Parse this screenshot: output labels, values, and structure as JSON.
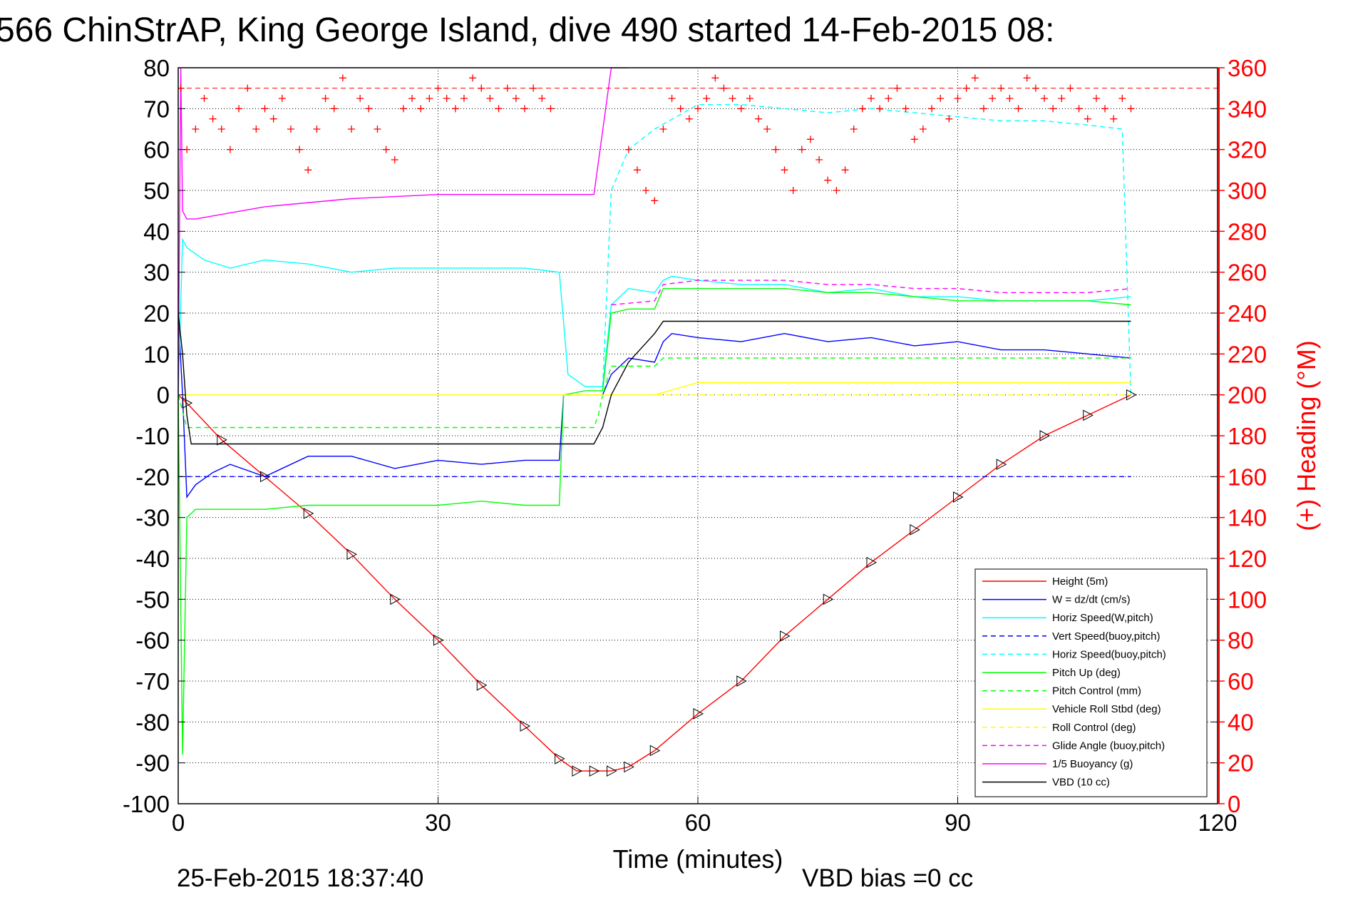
{
  "chart_data": {
    "type": "line",
    "title": "566 ChinStrAP, King George Island, dive 490 started 14-Feb-2015 08:",
    "xlabel": "Time (minutes)",
    "ylabel_right": "(+) Heading (°M)",
    "xlim": [
      0,
      120
    ],
    "ylim_left": [
      -100,
      80
    ],
    "ylim_right": [
      0,
      360
    ],
    "x_ticks": [
      "0",
      "30",
      "60",
      "90",
      "120"
    ],
    "y_ticks_left": [
      "80",
      "70",
      "60",
      "50",
      "40",
      "30",
      "20",
      "10",
      "0",
      "-10",
      "-20",
      "-30",
      "-40",
      "-50",
      "-60",
      "-70",
      "-80",
      "-90",
      "-100"
    ],
    "y_ticks_right": [
      "360",
      "340",
      "320",
      "300",
      "280",
      "260",
      "240",
      "220",
      "200",
      "180",
      "160",
      "140",
      "120",
      "100",
      "80",
      "60",
      "40",
      "20",
      "0"
    ],
    "grid": true,
    "legend_position": "bottom-right",
    "footer_date": "25-Feb-2015 18:37:40",
    "footer_bias": "VBD bias =0 cc",
    "series": [
      {
        "name": "Height (5m)",
        "color": "#ff0000",
        "style": "solid",
        "x": [
          0,
          1,
          5,
          10,
          15,
          20,
          25,
          30,
          35,
          40,
          44,
          46,
          48,
          50,
          52,
          55,
          60,
          65,
          70,
          75,
          80,
          85,
          90,
          95,
          100,
          105,
          110
        ],
        "y": [
          0,
          -2,
          -11,
          -20,
          -29,
          -39,
          -50,
          -60,
          -71,
          -81,
          -89,
          -92,
          -92,
          -92,
          -91,
          -87,
          -78,
          -70,
          -59,
          -50,
          -41,
          -33,
          -25,
          -17,
          -10,
          -5,
          0
        ]
      },
      {
        "name": "W = dz/dt (cm/s)",
        "color": "#0000ff",
        "style": "solid",
        "x": [
          0,
          0.5,
          1,
          2,
          4,
          6,
          10,
          15,
          20,
          25,
          30,
          35,
          40,
          44,
          44.5,
          46,
          48,
          49,
          50,
          52,
          55,
          56,
          57,
          60,
          65,
          70,
          75,
          80,
          85,
          90,
          95,
          100,
          105,
          110
        ],
        "y": [
          20,
          0,
          -25,
          -22,
          -19,
          -17,
          -20,
          -15,
          -15,
          -18,
          -16,
          -17,
          -16,
          -16,
          0,
          0,
          0,
          0,
          5,
          9,
          8,
          13,
          15,
          14,
          13,
          15,
          13,
          14,
          12,
          13,
          11,
          11,
          10,
          9
        ]
      },
      {
        "name": "Horiz Speed(W,pitch)",
        "color": "#00ffff",
        "style": "solid",
        "x": [
          0,
          0.5,
          1,
          3,
          6,
          10,
          15,
          20,
          25,
          30,
          35,
          40,
          44,
          45,
          47,
          49,
          50,
          52,
          55,
          56,
          57,
          60,
          65,
          70,
          75,
          80,
          85,
          90,
          95,
          100,
          105,
          110
        ],
        "y": [
          0,
          38,
          36,
          33,
          31,
          33,
          32,
          30,
          31,
          31,
          31,
          31,
          30,
          5,
          2,
          2,
          22,
          26,
          25,
          28,
          29,
          28,
          27,
          27,
          25,
          26,
          24,
          24,
          23,
          23,
          23,
          24
        ]
      },
      {
        "name": "Vert Speed(buoy,pitch)",
        "color": "#0000ff",
        "style": "dashed",
        "x": [
          0,
          110
        ],
        "y": [
          -20,
          -20
        ]
      },
      {
        "name": "Horiz Speed(buoy,pitch)",
        "color": "#00ffff",
        "style": "dashed",
        "x": [
          49,
          50,
          52,
          55,
          60,
          65,
          70,
          75,
          80,
          85,
          90,
          95,
          100,
          105,
          109,
          110
        ],
        "y": [
          2,
          50,
          60,
          65,
          71,
          71,
          70,
          69,
          70,
          69,
          68,
          67,
          67,
          66,
          65,
          0
        ]
      },
      {
        "name": "Pitch Up (deg)",
        "color": "#00ff00",
        "style": "solid",
        "x": [
          0,
          0.5,
          1,
          2,
          5,
          10,
          15,
          20,
          25,
          30,
          35,
          40,
          44,
          44.5,
          47,
          49,
          50,
          52,
          55,
          56,
          60,
          65,
          70,
          75,
          80,
          85,
          90,
          95,
          100,
          105,
          110
        ],
        "y": [
          0,
          -88,
          -30,
          -28,
          -28,
          -28,
          -27,
          -27,
          -27,
          -27,
          -26,
          -27,
          -27,
          0,
          1,
          1,
          20,
          21,
          21,
          26,
          26,
          26,
          26,
          25,
          25,
          24,
          23,
          23,
          23,
          23,
          22
        ]
      },
      {
        "name": "Pitch Control (mm)",
        "color": "#00ff00",
        "style": "dashed",
        "x": [
          0,
          1,
          2,
          44,
          48,
          48.5,
          49,
          50,
          55,
          56,
          110
        ],
        "y": [
          0,
          -8,
          -8,
          -8,
          -8,
          -5,
          0,
          7,
          7,
          9,
          9
        ]
      },
      {
        "name": "Vehicle Roll Stbd (deg)",
        "color": "#ffff00",
        "style": "solid",
        "x": [
          0,
          1,
          2,
          5,
          10,
          15,
          20,
          30,
          40,
          44,
          48,
          50,
          55,
          60,
          70,
          80,
          90,
          100,
          110
        ],
        "y": [
          0,
          0,
          0,
          0,
          0,
          0,
          0,
          0,
          0,
          0,
          0,
          0,
          0,
          3,
          3,
          3,
          3,
          3,
          3
        ]
      },
      {
        "name": "Roll Control (deg)",
        "color": "#ffff00",
        "style": "dashed",
        "x": [
          0,
          110
        ],
        "y": [
          0,
          0
        ]
      },
      {
        "name": "Glide Angle (buoy,pitch)",
        "color": "#ff00ff",
        "style": "dashed",
        "x": [
          50,
          55,
          56,
          60,
          65,
          70,
          75,
          80,
          85,
          90,
          95,
          100,
          105,
          110
        ],
        "y": [
          22,
          23,
          27,
          28,
          28,
          28,
          27,
          27,
          26,
          26,
          25,
          25,
          25,
          26
        ]
      },
      {
        "name": "1/5 Buoyancy (g)",
        "color": "#ff00ff",
        "style": "solid",
        "x": [
          0,
          0.3,
          0.5,
          1,
          2,
          10,
          20,
          30,
          40,
          48,
          50,
          52
        ],
        "y": [
          0,
          80,
          45,
          43,
          43,
          46,
          48,
          49,
          49,
          49,
          80,
          80
        ]
      },
      {
        "name": "VBD (10 cc)",
        "color": "#000000",
        "style": "solid",
        "x": [
          0,
          0.5,
          1,
          1.5,
          48,
          49,
          50,
          52,
          55,
          56,
          110
        ],
        "y": [
          20,
          10,
          -5,
          -12,
          -12,
          -8,
          0,
          8,
          15,
          18,
          18
        ]
      }
    ],
    "heading_series": {
      "name": "(+) Heading (°M)",
      "color": "#ff0000",
      "marker": "+",
      "x": [
        0.3,
        1,
        2,
        3,
        4,
        5,
        6,
        7,
        8,
        9,
        10,
        11,
        12,
        13,
        14,
        15,
        16,
        17,
        18,
        19,
        20,
        21,
        22,
        23,
        24,
        25,
        26,
        27,
        28,
        29,
        30,
        31,
        32,
        33,
        34,
        35,
        36,
        37,
        38,
        39,
        40,
        41,
        42,
        43,
        52,
        53,
        54,
        55,
        56,
        57,
        58,
        59,
        60,
        61,
        62,
        63,
        64,
        65,
        66,
        67,
        68,
        69,
        70,
        71,
        72,
        73,
        74,
        75,
        76,
        77,
        78,
        79,
        80,
        81,
        82,
        83,
        84,
        85,
        86,
        87,
        88,
        89,
        90,
        91,
        92,
        93,
        94,
        95,
        96,
        97,
        98,
        99,
        100,
        101,
        102,
        103,
        104,
        105,
        106,
        107,
        108,
        109,
        110
      ],
      "y": [
        350,
        320,
        330,
        345,
        335,
        330,
        320,
        340,
        350,
        330,
        340,
        335,
        345,
        330,
        320,
        310,
        330,
        345,
        340,
        355,
        330,
        345,
        340,
        330,
        320,
        315,
        340,
        345,
        340,
        345,
        350,
        345,
        340,
        345,
        355,
        350,
        345,
        340,
        350,
        345,
        340,
        350,
        345,
        340,
        320,
        310,
        300,
        295,
        330,
        345,
        340,
        335,
        340,
        345,
        355,
        350,
        345,
        340,
        345,
        335,
        330,
        320,
        310,
        300,
        320,
        325,
        315,
        305,
        300,
        310,
        330,
        340,
        345,
        340,
        345,
        350,
        340,
        325,
        330,
        340,
        345,
        335,
        345,
        350,
        355,
        340,
        345,
        350,
        345,
        340,
        355,
        350,
        345,
        340,
        345,
        350,
        340,
        335,
        345,
        340,
        335,
        345,
        340
      ]
    }
  }
}
